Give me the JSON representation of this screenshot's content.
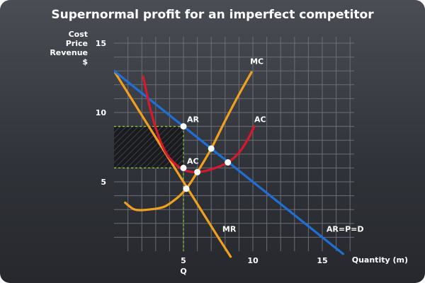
{
  "chart_data": {
    "type": "line",
    "title": "Supernormal profit for an imperfect competitor",
    "ylabel_lines": [
      "Cost",
      "Price",
      "Revenue",
      "$"
    ],
    "xlabel": "Quantity (m)",
    "xlim": [
      0,
      17
    ],
    "ylim": [
      0,
      16
    ],
    "x_ticks": [
      5,
      10,
      15
    ],
    "y_ticks": [
      5,
      10,
      15
    ],
    "grid": true,
    "q_label": "Q",
    "colors": {
      "ar": "#1f6fd6",
      "mr": "#f0a020",
      "mc": "#f0a020",
      "ac": "#d9182d",
      "guide": "#8fd63a",
      "point": "#ffffff"
    },
    "series": [
      {
        "name": "AR=P=D",
        "key": "ar",
        "points": [
          [
            0,
            13
          ],
          [
            5,
            9
          ],
          [
            8,
            6.6
          ],
          [
            10,
            5
          ],
          [
            15,
            1
          ],
          [
            16.5,
            -0.2
          ]
        ]
      },
      {
        "name": "MR",
        "key": "mr",
        "points": [
          [
            0,
            13
          ],
          [
            2.5,
            9
          ],
          [
            5,
            5
          ],
          [
            7.5,
            1
          ],
          [
            8.4,
            -0.4
          ]
        ]
      },
      {
        "name": "MC",
        "key": "mc",
        "points": [
          [
            0.8,
            3.5
          ],
          [
            1.5,
            3
          ],
          [
            2.5,
            3
          ],
          [
            3.6,
            3.2
          ],
          [
            4.5,
            3.8
          ],
          [
            5.2,
            4.5
          ],
          [
            6,
            5.7
          ],
          [
            7,
            7.4
          ],
          [
            8,
            9.4
          ],
          [
            9,
            11.3
          ],
          [
            9.9,
            12.9
          ]
        ]
      },
      {
        "name": "AC",
        "key": "ac",
        "points": [
          [
            2.1,
            12.6
          ],
          [
            2.6,
            10.3
          ],
          [
            3.2,
            8.3
          ],
          [
            3.8,
            7
          ],
          [
            4.5,
            6.2
          ],
          [
            5.2,
            5.8
          ],
          [
            6,
            5.7
          ],
          [
            7,
            5.9
          ],
          [
            8.2,
            6.4
          ],
          [
            9,
            7.1
          ],
          [
            9.6,
            8
          ],
          [
            10.1,
            9
          ]
        ]
      }
    ],
    "curve_labels": [
      {
        "text": "MC",
        "x": 9.8,
        "y": 13.5
      },
      {
        "text": "AC",
        "x": 10.1,
        "y": 9.3
      },
      {
        "text": "MR",
        "x": 7.8,
        "y": 1.4
      },
      {
        "text": "AR=P=D",
        "x": 15.3,
        "y": 1.4
      }
    ],
    "points": [
      {
        "label": "AR",
        "x": 5,
        "y": 9
      },
      {
        "label": "AC",
        "x": 5,
        "y": 6
      },
      {
        "label": "",
        "x": 5.2,
        "y": 4.5
      },
      {
        "label": "",
        "x": 6,
        "y": 5.7
      },
      {
        "label": "",
        "x": 7,
        "y": 7.4
      },
      {
        "label": "",
        "x": 8.2,
        "y": 6.4
      }
    ],
    "profit_area": {
      "q": 5,
      "price": 9,
      "ac": 6
    },
    "guides": [
      {
        "from": [
          0,
          9
        ],
        "to": [
          5,
          9
        ]
      },
      {
        "from": [
          0,
          6
        ],
        "to": [
          5,
          6
        ]
      },
      {
        "from": [
          5,
          9
        ],
        "to": [
          5,
          0
        ]
      }
    ]
  }
}
